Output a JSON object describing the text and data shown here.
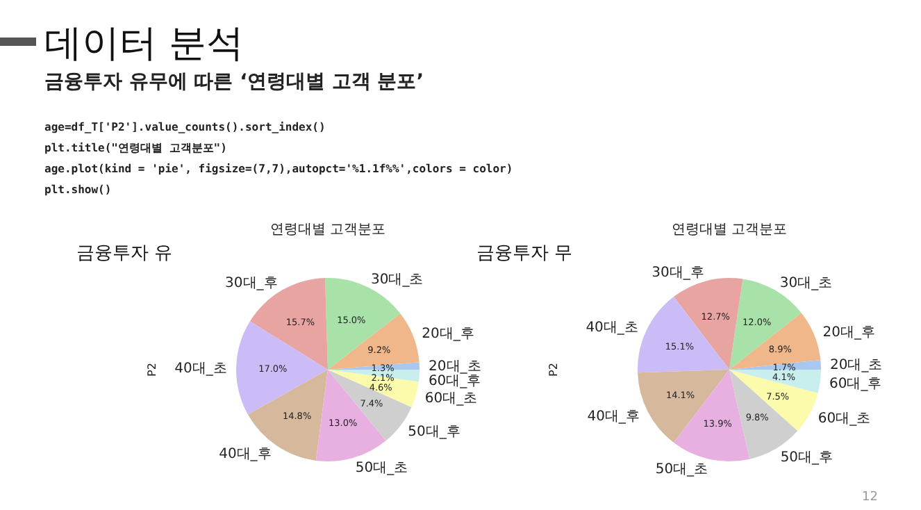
{
  "chart_data": [
    {
      "type": "other",
      "title": "데이터 분석",
      "subtitle": "금융투자 유무에 따른 ‘연령대별 고객 분포’",
      "annotations": [
        "age=df_T['P2'].value_counts().sort_index()",
        "plt.title(\"연령대별 고객분포\")",
        "age.plot(kind = 'pie', figsize=(7,7),autopct='%1.1f%%',colors = color)",
        "plt.show()",
        "12"
      ]
    },
    {
      "type": "pie",
      "title": "연령대별 고객분포",
      "subtitle": "금융투자 유",
      "ylabel": "P2",
      "categories": [
        "20대_초",
        "20대_후",
        "30대_초",
        "30대_후",
        "40대_초",
        "40대_후",
        "50대_초",
        "50대_후",
        "60대_초",
        "60대_후"
      ],
      "values": [
        1.3,
        9.2,
        15.0,
        15.7,
        17.0,
        14.8,
        13.0,
        7.4,
        4.6,
        2.1
      ],
      "value_labels": [
        "1.3%",
        "9.2%",
        "15.0%",
        "15.7%",
        "17.0%",
        "14.8%",
        "13.0%",
        "7.4%",
        "4.6%",
        "2.1%"
      ],
      "colors": [
        "#a8c8f0",
        "#efb78a",
        "#a8e2a8",
        "#e8a4a0",
        "#cbbcf8",
        "#d6b99c",
        "#e8b0e0",
        "#cfcfcf",
        "#fbfbab",
        "#c8eeee"
      ]
    },
    {
      "type": "pie",
      "title": "연령대별 고객분포",
      "subtitle": "금융투자 무",
      "ylabel": "P2",
      "categories": [
        "20대_초",
        "20대_후",
        "30대_초",
        "30대_후",
        "40대_초",
        "40대_후",
        "50대_초",
        "50대_후",
        "60대_초",
        "60대_후"
      ],
      "values": [
        1.7,
        8.9,
        12.0,
        12.7,
        15.1,
        14.1,
        13.9,
        9.8,
        7.5,
        4.1
      ],
      "value_labels": [
        "1.7%",
        "8.9%",
        "12.0%",
        "12.7%",
        "15.1%",
        "14.1%",
        "13.9%",
        "9.8%",
        "7.5%",
        "4.1%"
      ],
      "colors": [
        "#a8c8f0",
        "#efb78a",
        "#a8e2a8",
        "#e8a4a0",
        "#cbbcf8",
        "#d6b99c",
        "#e8b0e0",
        "#cfcfcf",
        "#fbfbab",
        "#c8eeee"
      ]
    }
  ]
}
